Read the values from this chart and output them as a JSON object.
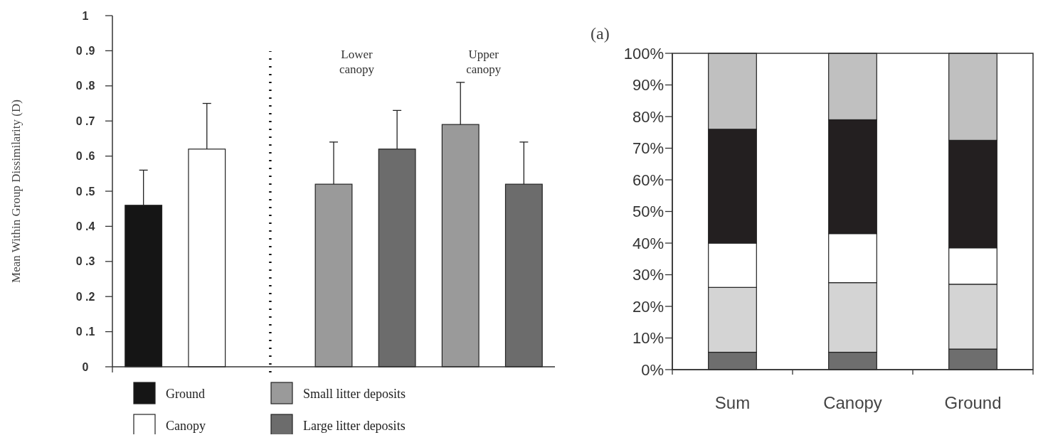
{
  "chart_data": [
    {
      "type": "bar",
      "ylabel": "Mean Within Group Dissimilarity (D)",
      "categories": [
        null,
        null,
        null,
        null,
        null,
        null,
        null
      ],
      "series": [
        {
          "name": "Ground",
          "color": "#151515",
          "values": [
            0.46,
            null,
            null,
            null,
            null,
            null,
            null
          ],
          "errors": [
            [
              0.46,
              0.56
            ],
            null,
            null,
            null,
            null,
            null,
            null
          ]
        },
        {
          "name": "Canopy",
          "color": "#ffffff",
          "values": [
            null,
            0.62,
            null,
            null,
            null,
            null,
            null
          ],
          "errors": [
            null,
            [
              0.62,
              0.75
            ],
            null,
            null,
            null,
            null,
            null
          ]
        },
        {
          "name": "Small litter deposits",
          "color": "#9a9a9a",
          "values": [
            null,
            null,
            null,
            0.52,
            null,
            0.69,
            null
          ],
          "errors": [
            null,
            null,
            null,
            [
              0.52,
              0.64
            ],
            null,
            [
              0.69,
              0.81
            ],
            null
          ]
        },
        {
          "name": "Large litter deposits",
          "color": "#6c6c6c",
          "values": [
            null,
            null,
            null,
            null,
            0.62,
            null,
            0.52
          ],
          "errors": [
            null,
            null,
            null,
            null,
            [
              0.62,
              0.73
            ],
            null,
            [
              0.52,
              0.64
            ]
          ]
        }
      ],
      "ylim": [
        0,
        1
      ],
      "yticks": [
        0,
        {
          "value": 0.1,
          "label": "0 .1"
        },
        {
          "value": 0.2,
          "label": "0 .2"
        },
        {
          "value": 0.3,
          "label": "0 .3"
        },
        {
          "value": 0.4,
          "label": "0 .4"
        },
        {
          "value": 0.5,
          "label": "0 .5"
        },
        {
          "value": 0.6,
          "label": "0 .6"
        },
        {
          "value": 0.7,
          "label": "0 .7"
        },
        {
          "value": 0.8,
          "label": "0 .8"
        },
        {
          "value": 0.9,
          "label": "0 .9"
        },
        1
      ],
      "annotations": [
        {
          "text": "Lower canopy"
        },
        {
          "text": "Upper canopy"
        }
      ],
      "legend": "bottom",
      "grid": false
    },
    {
      "type": "bar",
      "title": "(a)",
      "stacked": true,
      "categories": [
        "Sum",
        "Canopy",
        "Ground"
      ],
      "series": [
        {
          "color": "#6e6e6e",
          "values": [
            5.5,
            5.5,
            6.5
          ]
        },
        {
          "color": "#d4d4d4",
          "values": [
            20.5,
            22,
            20.5
          ]
        },
        {
          "color": "#ffffff",
          "values": [
            14,
            15.5,
            11.5
          ]
        },
        {
          "color": "#231f20",
          "values": [
            36,
            36,
            34
          ]
        },
        {
          "color": "#c0c0c0",
          "values": [
            24,
            21,
            27.5
          ]
        }
      ],
      "ylim": [
        0,
        100
      ],
      "yticks": [
        {
          "value": 0,
          "label": "0%"
        },
        {
          "value": 10,
          "label": "10%"
        },
        {
          "value": 20,
          "label": "20%"
        },
        {
          "value": 30,
          "label": "30%"
        },
        {
          "value": 40,
          "label": "40%"
        },
        {
          "value": 50,
          "label": "50%"
        },
        {
          "value": 60,
          "label": "60%"
        },
        {
          "value": 70,
          "label": "70%"
        },
        {
          "value": 80,
          "label": "80%"
        },
        {
          "value": 90,
          "label": "90%"
        },
        {
          "value": 100,
          "label": "100%"
        }
      ],
      "legend": false,
      "grid": false
    }
  ]
}
